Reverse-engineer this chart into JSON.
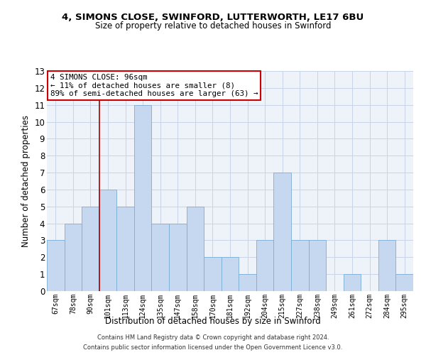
{
  "title1": "4, SIMONS CLOSE, SWINFORD, LUTTERWORTH, LE17 6BU",
  "title2": "Size of property relative to detached houses in Swinford",
  "xlabel": "Distribution of detached houses by size in Swinford",
  "ylabel": "Number of detached properties",
  "categories": [
    "67sqm",
    "78sqm",
    "90sqm",
    "101sqm",
    "113sqm",
    "124sqm",
    "135sqm",
    "147sqm",
    "158sqm",
    "170sqm",
    "181sqm",
    "192sqm",
    "204sqm",
    "215sqm",
    "227sqm",
    "238sqm",
    "249sqm",
    "261sqm",
    "272sqm",
    "284sqm",
    "295sqm"
  ],
  "values": [
    3,
    4,
    5,
    6,
    5,
    11,
    4,
    4,
    5,
    2,
    2,
    1,
    3,
    7,
    3,
    3,
    0,
    1,
    0,
    3,
    1
  ],
  "bar_color": "#c5d8f0",
  "bar_edge_color": "#7aadd4",
  "redline_x": 2.5,
  "annotation_text": "4 SIMONS CLOSE: 96sqm\n← 11% of detached houses are smaller (8)\n89% of semi-detached houses are larger (63) →",
  "annotation_box_color": "#ffffff",
  "annotation_box_edge_color": "#cc0000",
  "ylim_max": 13,
  "yticks": [
    0,
    1,
    2,
    3,
    4,
    5,
    6,
    7,
    8,
    9,
    10,
    11,
    12,
    13
  ],
  "grid_color": "#c8d4e8",
  "bg_color": "#eef2f9",
  "footer1": "Contains HM Land Registry data © Crown copyright and database right 2024.",
  "footer2": "Contains public sector information licensed under the Open Government Licence v3.0."
}
